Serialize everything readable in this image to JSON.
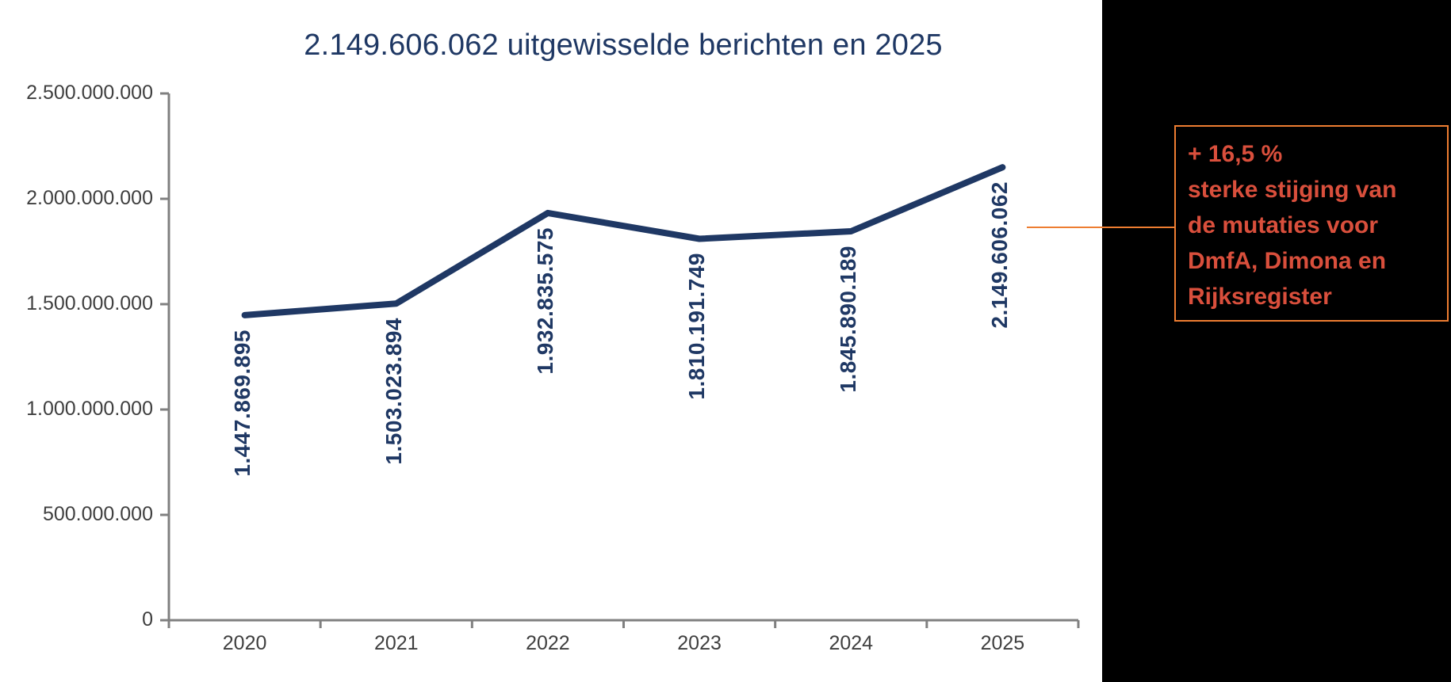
{
  "title": "2.149.606.062 uitgewisselde berichten en 2025",
  "chart_data": {
    "type": "line",
    "categories": [
      "2020",
      "2021",
      "2022",
      "2023",
      "2024",
      "2025"
    ],
    "values": [
      1447869895,
      1503023894,
      1932835575,
      1810191749,
      1845890189,
      2149606062
    ],
    "data_labels": [
      "1.447.869.895",
      "1.503.023.894",
      "1.932.835.575",
      "1.810.191.749",
      "1.845.890.189",
      "2.149.606.062"
    ],
    "y_tick_values": [
      2500000000,
      2000000000,
      1500000000,
      1000000000,
      500000000,
      0
    ],
    "y_tick_labels": [
      "2.500.000.000",
      "2.000.000.000",
      "1.500.000.000",
      "1.000.000.000",
      "500.000.000",
      "0"
    ],
    "ylim": [
      0,
      2500000000
    ],
    "xlabel": "",
    "ylabel": "",
    "grid": false,
    "legend": false,
    "title": "2.149.606.062 uitgewisselde berichten en 2025"
  },
  "annotation": {
    "lines": [
      "+ 16,5 %",
      "sterke stijging van",
      "de mutaties voor",
      "DmfA, Dimona en",
      "Rijksregister"
    ]
  },
  "colors": {
    "series_line": "#1F3864",
    "title_text": "#1F3864",
    "data_label_text": "#1F3864",
    "axis_line": "#808080",
    "axis_label_text": "#3F3F3F",
    "annotation_text": "#D94F3C",
    "annotation_border": "#ED7D31",
    "connector": "#ED7D31",
    "panel_background": "#000000",
    "page_background": "#FFFFFF"
  }
}
